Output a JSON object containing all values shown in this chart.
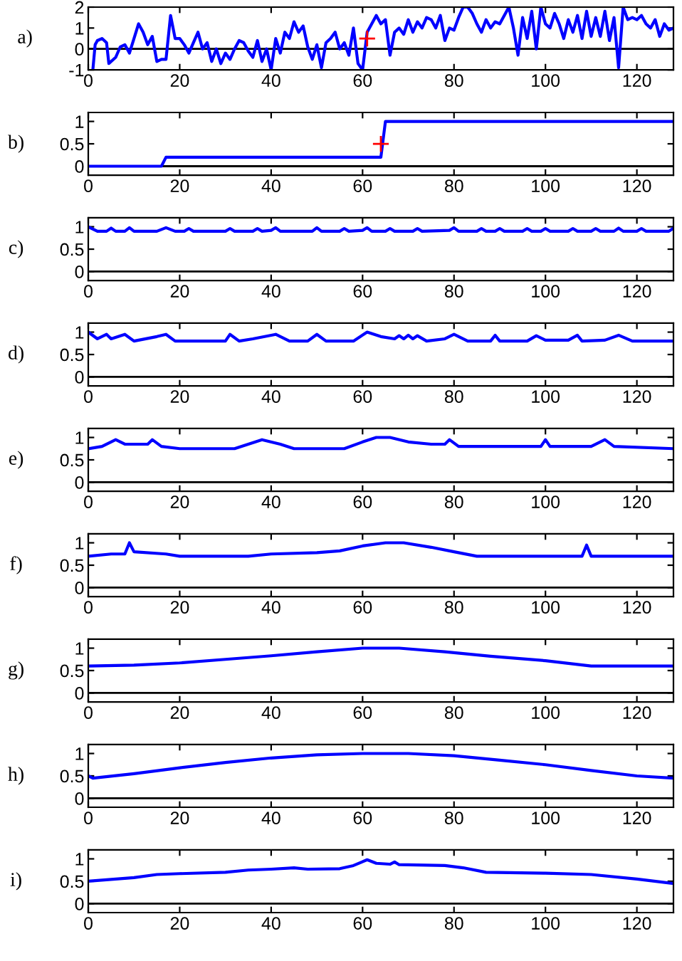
{
  "chart_data": [
    {
      "type": "line",
      "ylabel": "a)",
      "xlim": [
        0,
        128
      ],
      "xticks": [
        0,
        20,
        40,
        60,
        80,
        100,
        120
      ],
      "ylim": [
        -1,
        2
      ],
      "yticks": [
        -1,
        0,
        1,
        2
      ],
      "ref_lines": [
        {
          "axis": "y",
          "value": 0,
          "color": "#000000"
        }
      ],
      "series": [
        {
          "type": "line",
          "color": "#0000ff",
          "x": [
            1,
            1.5,
            2,
            3,
            4,
            4.5,
            6,
            7,
            8,
            9,
            10,
            11,
            12,
            13,
            14,
            15,
            16,
            17,
            18,
            19,
            20,
            21,
            22,
            23,
            24,
            25,
            26,
            27,
            28,
            29,
            30,
            31,
            32,
            33,
            34,
            35,
            36,
            37,
            38,
            39,
            40,
            41,
            42,
            43,
            44,
            45,
            46,
            47,
            48,
            49,
            50,
            51,
            52,
            53,
            54,
            55,
            56,
            57,
            58,
            59,
            60,
            61,
            62,
            63,
            64,
            65,
            66,
            67,
            68,
            69,
            70,
            71,
            72,
            73,
            74,
            75,
            76,
            77,
            78,
            79,
            80,
            81,
            82,
            83,
            84,
            85,
            86,
            87,
            88,
            89,
            90,
            91,
            92,
            93,
            94,
            95,
            96,
            97,
            98,
            99,
            100,
            101,
            102,
            103,
            104,
            105,
            106,
            107,
            108,
            109,
            110,
            111,
            112,
            113,
            114,
            115,
            116,
            117,
            118,
            119,
            120,
            121,
            122,
            123,
            124,
            125,
            126,
            127,
            128
          ],
          "values": [
            -1,
            0.2,
            0.4,
            0.5,
            0.3,
            -0.7,
            -0.4,
            0.1,
            0.2,
            -0.2,
            0.5,
            1.2,
            0.8,
            0.2,
            0.6,
            -0.6,
            -0.5,
            -0.5,
            1.6,
            0.5,
            0.5,
            0.2,
            -0.2,
            0.3,
            0.8,
            0,
            0.3,
            -0.6,
            0,
            -0.7,
            -0.2,
            -0.5,
            0,
            0.4,
            0.3,
            -0.1,
            -0.4,
            0.4,
            -0.6,
            0,
            -1,
            0.5,
            -0.2,
            0.8,
            0.5,
            1.3,
            0.8,
            1.1,
            0.1,
            -0.5,
            0.2,
            -0.9,
            0.3,
            0.5,
            0.8,
            0,
            0.3,
            -0.3,
            1,
            -0.7,
            -1,
            0.8,
            1.2,
            1.6,
            1.2,
            1.4,
            -0.3,
            0.8,
            1,
            0.7,
            1.4,
            0.8,
            1.3,
            1,
            1.5,
            1.4,
            1,
            1.6,
            0.4,
            1,
            0.9,
            1.5,
            2,
            2,
            1.7,
            1.2,
            0.8,
            1.4,
            1,
            1.3,
            1.2,
            1.6,
            2,
            1,
            -0.3,
            1.5,
            0.5,
            1.8,
            0,
            2,
            1.2,
            1,
            1.7,
            1.2,
            0.5,
            1.4,
            0.8,
            1.6,
            0.5,
            1.8,
            0.6,
            1.5,
            0.6,
            1.8,
            0.4,
            1.5,
            -0.9,
            2,
            1.4,
            1.5,
            1.4,
            1.6,
            1.2,
            1,
            1.4,
            0.6,
            1.2,
            0.9,
            1
          ]
        },
        {
          "type": "scatter",
          "color": "#ff0000",
          "marker": "cross",
          "x": [
            61
          ],
          "values": [
            0.5
          ]
        }
      ]
    },
    {
      "type": "line",
      "ylabel": "b)",
      "xlim": [
        0,
        128
      ],
      "xticks": [
        0,
        20,
        40,
        60,
        80,
        100,
        120
      ],
      "ylim": [
        -0.2,
        1.2
      ],
      "yticks": [
        0,
        0.5,
        1
      ],
      "ref_lines": [
        {
          "axis": "y",
          "value": 0,
          "color": "#000000"
        }
      ],
      "series": [
        {
          "type": "line",
          "color": "#0000ff",
          "x": [
            0,
            16,
            17,
            64,
            65,
            128
          ],
          "values": [
            0,
            0,
            0.2,
            0.2,
            1,
            1
          ]
        },
        {
          "type": "scatter",
          "color": "#ff0000",
          "marker": "cross",
          "x": [
            64
          ],
          "values": [
            0.5
          ]
        }
      ]
    },
    {
      "type": "line",
      "ylabel": "c)",
      "xlim": [
        0,
        128
      ],
      "xticks": [
        0,
        20,
        40,
        60,
        80,
        100,
        120
      ],
      "ylim": [
        -0.2,
        1.2
      ],
      "yticks": [
        0,
        0.5,
        1
      ],
      "ref_lines": [
        {
          "axis": "y",
          "value": 0,
          "color": "#000000"
        }
      ],
      "series": [
        {
          "type": "line",
          "color": "#0000ff",
          "x": [
            0,
            2,
            4,
            5,
            6,
            8,
            9,
            10,
            15,
            17,
            19,
            21,
            22,
            23,
            30,
            31,
            32,
            36,
            37,
            38,
            40,
            41,
            42,
            49,
            50,
            51,
            55,
            56,
            57,
            60,
            61,
            62,
            65,
            66,
            67,
            71,
            72,
            73,
            79,
            80,
            81,
            85,
            86,
            87,
            89,
            90,
            91,
            95,
            96,
            97,
            99,
            100,
            101,
            105,
            106,
            107,
            110,
            111,
            112,
            115,
            116,
            117,
            120,
            121,
            122,
            127,
            128
          ],
          "values": [
            1,
            0.9,
            0.9,
            0.97,
            0.9,
            0.9,
            0.98,
            0.9,
            0.9,
            0.98,
            0.9,
            0.9,
            0.96,
            0.9,
            0.9,
            0.96,
            0.9,
            0.9,
            0.96,
            0.9,
            0.92,
            0.98,
            0.9,
            0.9,
            0.98,
            0.9,
            0.9,
            0.96,
            0.9,
            0.92,
            0.98,
            0.9,
            0.9,
            0.96,
            0.9,
            0.9,
            0.96,
            0.9,
            0.92,
            0.98,
            0.9,
            0.9,
            0.96,
            0.9,
            0.9,
            0.96,
            0.9,
            0.9,
            0.96,
            0.9,
            0.9,
            0.96,
            0.9,
            0.9,
            0.96,
            0.9,
            0.9,
            0.96,
            0.9,
            0.9,
            0.97,
            0.9,
            0.9,
            0.96,
            0.9,
            0.9,
            0.97
          ]
        }
      ]
    },
    {
      "type": "line",
      "ylabel": "d)",
      "xlim": [
        0,
        128
      ],
      "xticks": [
        0,
        20,
        40,
        60,
        80,
        100,
        120
      ],
      "ylim": [
        -0.2,
        1.2
      ],
      "yticks": [
        0,
        0.5,
        1
      ],
      "ref_lines": [
        {
          "axis": "y",
          "value": 0,
          "color": "#000000"
        }
      ],
      "series": [
        {
          "type": "line",
          "color": "#0000ff",
          "x": [
            0,
            2,
            4,
            5,
            8,
            10,
            15,
            17,
            19,
            30,
            31,
            33,
            36,
            41,
            44,
            48,
            50,
            52,
            58,
            61,
            64,
            67,
            68,
            69,
            70,
            71,
            72,
            74,
            78,
            80,
            83,
            88,
            89,
            90,
            96,
            98,
            100,
            105,
            107,
            108,
            113,
            116,
            119,
            128
          ],
          "values": [
            1,
            0.85,
            0.95,
            0.85,
            0.95,
            0.8,
            0.9,
            0.95,
            0.8,
            0.8,
            0.95,
            0.8,
            0.85,
            0.95,
            0.8,
            0.8,
            0.95,
            0.8,
            0.8,
            1,
            0.9,
            0.85,
            0.92,
            0.85,
            0.93,
            0.85,
            0.92,
            0.8,
            0.85,
            0.95,
            0.8,
            0.8,
            0.93,
            0.8,
            0.8,
            0.92,
            0.82,
            0.82,
            0.93,
            0.8,
            0.82,
            0.93,
            0.8,
            0.8
          ]
        }
      ]
    },
    {
      "type": "line",
      "ylabel": "e)",
      "xlim": [
        0,
        128
      ],
      "xticks": [
        0,
        20,
        40,
        60,
        80,
        100,
        120
      ],
      "ylim": [
        -0.2,
        1.2
      ],
      "yticks": [
        0,
        0.5,
        1
      ],
      "ref_lines": [
        {
          "axis": "y",
          "value": 0,
          "color": "#000000"
        }
      ],
      "series": [
        {
          "type": "line",
          "color": "#0000ff",
          "x": [
            0,
            3,
            6,
            8,
            13,
            14,
            16,
            20,
            32,
            38,
            42,
            45,
            56,
            60,
            63,
            66,
            70,
            75,
            78,
            79,
            81,
            99,
            100,
            101,
            110,
            113,
            115,
            128
          ],
          "values": [
            0.75,
            0.8,
            0.95,
            0.85,
            0.85,
            0.95,
            0.8,
            0.75,
            0.75,
            0.95,
            0.85,
            0.75,
            0.75,
            0.9,
            1,
            1,
            0.9,
            0.85,
            0.85,
            0.95,
            0.8,
            0.8,
            0.95,
            0.8,
            0.8,
            0.95,
            0.8,
            0.75
          ]
        }
      ]
    },
    {
      "type": "line",
      "ylabel": "f)",
      "xlim": [
        0,
        128
      ],
      "xticks": [
        0,
        20,
        40,
        60,
        80,
        100,
        120
      ],
      "ylim": [
        -0.2,
        1.2
      ],
      "yticks": [
        0,
        0.5,
        1
      ],
      "ref_lines": [
        {
          "axis": "y",
          "value": 0,
          "color": "#000000"
        }
      ],
      "series": [
        {
          "type": "line",
          "color": "#0000ff",
          "x": [
            0,
            5,
            8,
            9,
            10,
            17,
            20,
            35,
            40,
            50,
            55,
            60,
            65,
            69,
            75,
            80,
            85,
            108,
            109,
            110,
            128
          ],
          "values": [
            0.7,
            0.75,
            0.75,
            1,
            0.8,
            0.75,
            0.7,
            0.7,
            0.75,
            0.78,
            0.82,
            0.93,
            1,
            1,
            0.9,
            0.8,
            0.7,
            0.7,
            0.95,
            0.7,
            0.7
          ]
        }
      ]
    },
    {
      "type": "line",
      "ylabel": "g)",
      "xlim": [
        0,
        128
      ],
      "xticks": [
        0,
        20,
        40,
        60,
        80,
        100,
        120
      ],
      "ylim": [
        -0.2,
        1.2
      ],
      "yticks": [
        0,
        0.5,
        1
      ],
      "ref_lines": [
        {
          "axis": "y",
          "value": 0,
          "color": "#000000"
        }
      ],
      "series": [
        {
          "type": "line",
          "color": "#0000ff",
          "x": [
            0,
            10,
            20,
            30,
            40,
            50,
            60,
            68,
            78,
            88,
            100,
            110,
            128
          ],
          "values": [
            0.6,
            0.62,
            0.67,
            0.75,
            0.83,
            0.92,
            1,
            1,
            0.92,
            0.82,
            0.72,
            0.6,
            0.6
          ]
        }
      ]
    },
    {
      "type": "line",
      "ylabel": "h)",
      "xlim": [
        0,
        128
      ],
      "xticks": [
        0,
        20,
        40,
        60,
        80,
        100,
        120
      ],
      "ylim": [
        -0.2,
        1.2
      ],
      "yticks": [
        0,
        0.5,
        1
      ],
      "ref_lines": [
        {
          "axis": "y",
          "value": 0,
          "color": "#000000"
        }
      ],
      "series": [
        {
          "type": "line",
          "color": "#0000ff",
          "x": [
            0,
            1,
            10,
            20,
            30,
            40,
            50,
            60,
            70,
            80,
            90,
            100,
            110,
            120,
            128
          ],
          "values": [
            0.5,
            0.45,
            0.55,
            0.68,
            0.8,
            0.9,
            0.97,
            1,
            1,
            0.95,
            0.85,
            0.75,
            0.62,
            0.5,
            0.45
          ]
        }
      ]
    },
    {
      "type": "line",
      "ylabel": "i)",
      "xlim": [
        0,
        128
      ],
      "xticks": [
        0,
        20,
        40,
        60,
        80,
        100,
        120
      ],
      "ylim": [
        -0.2,
        1.2
      ],
      "yticks": [
        0,
        0.5,
        1
      ],
      "ref_lines": [
        {
          "axis": "y",
          "value": 0,
          "color": "#000000"
        }
      ],
      "series": [
        {
          "type": "line",
          "color": "#0000ff",
          "x": [
            0,
            10,
            15,
            20,
            30,
            35,
            40,
            45,
            48,
            55,
            58,
            61,
            63,
            66,
            67,
            68,
            78,
            82,
            87,
            100,
            110,
            120,
            128
          ],
          "values": [
            0.5,
            0.58,
            0.65,
            0.67,
            0.7,
            0.75,
            0.77,
            0.8,
            0.77,
            0.78,
            0.85,
            0.98,
            0.9,
            0.88,
            0.93,
            0.87,
            0.85,
            0.8,
            0.7,
            0.68,
            0.65,
            0.55,
            0.45
          ]
        }
      ]
    }
  ]
}
